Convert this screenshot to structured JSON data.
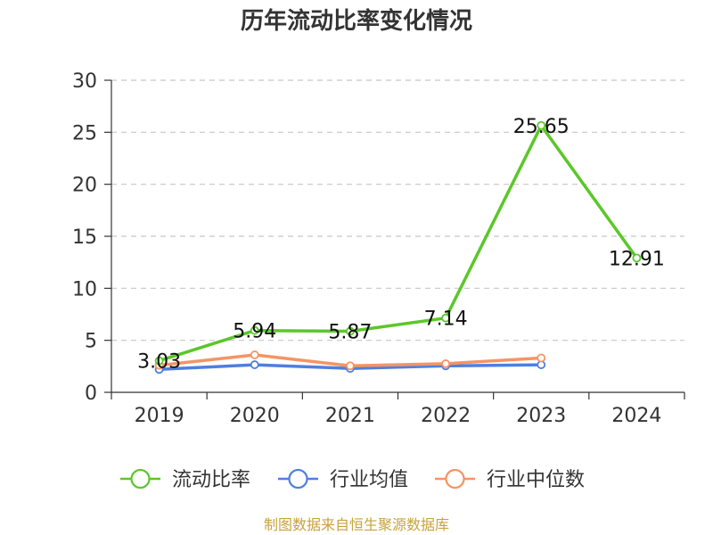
{
  "chart_data": {
    "type": "line",
    "title": "历年流动比率变化情况",
    "categories": [
      "2019",
      "2020",
      "2021",
      "2022",
      "2023",
      "2024"
    ],
    "ylim": [
      0,
      30
    ],
    "yticks": [
      0,
      5,
      10,
      15,
      20,
      25,
      30
    ],
    "grid": true,
    "legend_position": "bottom",
    "series": [
      {
        "name": "流动比率",
        "color": "#5bc72a",
        "values": [
          3.03,
          5.94,
          5.87,
          7.14,
          25.65,
          12.91
        ],
        "show_labels": true,
        "labels": [
          "3.03",
          "5.94",
          "5.87",
          "7.14",
          "25.65",
          "12.91"
        ]
      },
      {
        "name": "行业均值",
        "color": "#4f7fdf",
        "values": [
          2.2,
          2.65,
          2.3,
          2.55,
          2.65,
          null
        ],
        "show_labels": false
      },
      {
        "name": "行业中位数",
        "color": "#f59464",
        "values": [
          2.6,
          3.6,
          2.55,
          2.75,
          3.3,
          null
        ],
        "show_labels": false
      }
    ]
  },
  "source": {
    "text": "制图数据来自恒生聚源数据库",
    "color": "#c8a23c"
  }
}
